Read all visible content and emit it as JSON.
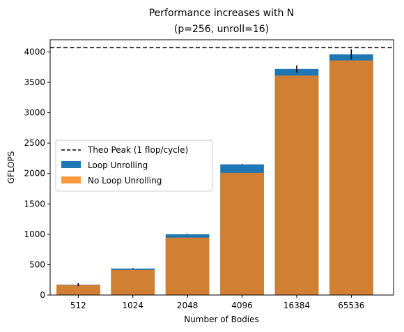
{
  "chart_data": {
    "type": "bar",
    "title": "Performance increases with N",
    "subtitle": "(p=256, unroll=16)",
    "xlabel": "Number of Bodies",
    "ylabel": "GFLOPS",
    "ylim": [
      0,
      4200
    ],
    "yticks": [
      0,
      500,
      1000,
      1500,
      2000,
      2500,
      3000,
      3500,
      4000
    ],
    "categories": [
      "512",
      "1024",
      "2048",
      "4096",
      "16384",
      "65536"
    ],
    "series": [
      {
        "name": "Loop Unrolling",
        "color": "#1f77b4",
        "values": [
          170,
          435,
          1000,
          2150,
          3720,
          3960
        ],
        "error": [
          25,
          8,
          5,
          5,
          60,
          85
        ]
      },
      {
        "name": "No Loop Unrolling",
        "color": "#ff7f0e",
        "values": [
          165,
          415,
          945,
          2010,
          3610,
          3860
        ]
      }
    ],
    "overlap_color": "#d17f32",
    "reference_line": {
      "name": "Theo Peak (1 flop/cycle)",
      "value": 4070,
      "style": "dashed",
      "color": "#000000"
    },
    "legend_position": "center-left",
    "grid": false
  }
}
